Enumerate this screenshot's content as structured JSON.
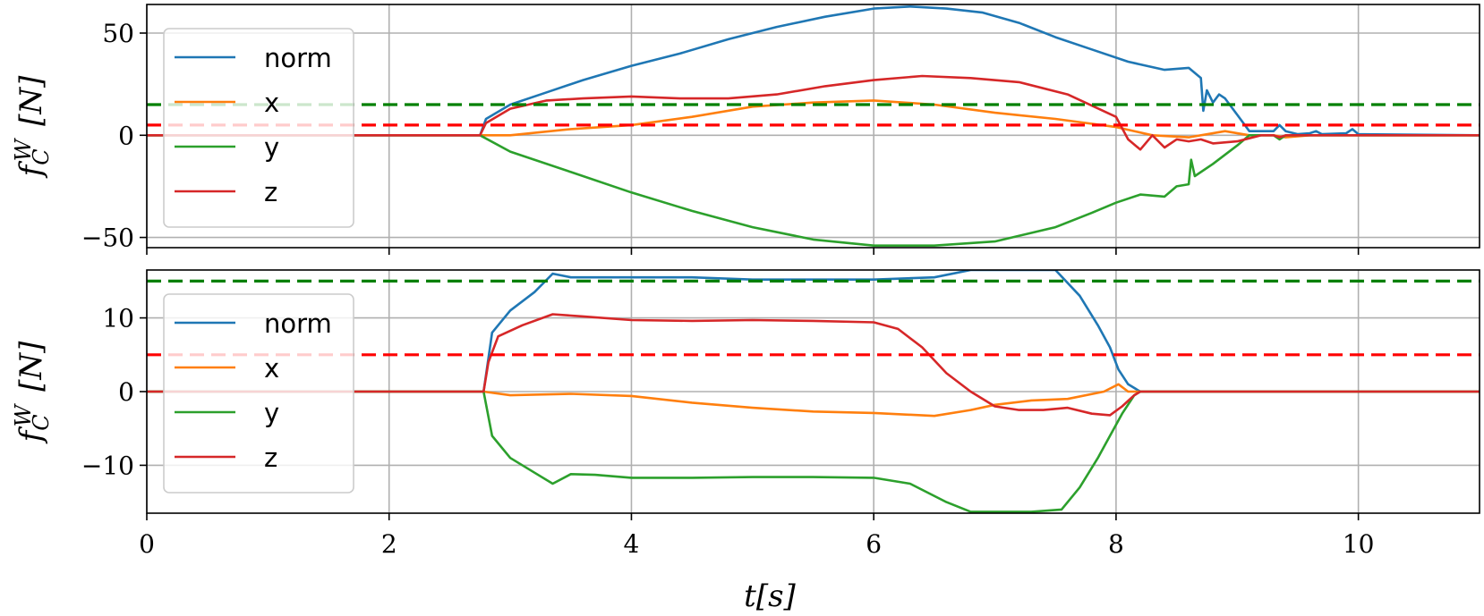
{
  "chart_data": [
    {
      "type": "line",
      "ylabel": "f_C^W [N]",
      "xlabel": "",
      "xlim": [
        0,
        11
      ],
      "ylim": [
        -55,
        64
      ],
      "xticks": [
        "0",
        "2",
        "4",
        "6",
        "8",
        "10"
      ],
      "xtick_values": [
        0,
        2,
        4,
        6,
        8,
        10
      ],
      "yticks": [
        "−50",
        "0",
        "50"
      ],
      "ytick_values": [
        -50,
        0,
        50
      ],
      "grid": true,
      "legend": "upper-left",
      "series": [
        {
          "name": "norm",
          "color": "#1f77b4",
          "x": [
            0,
            2.75,
            2.8,
            3.0,
            3.3,
            3.6,
            4.0,
            4.4,
            4.8,
            5.2,
            5.6,
            6.0,
            6.3,
            6.6,
            6.9,
            7.2,
            7.5,
            7.8,
            8.1,
            8.4,
            8.6,
            8.7,
            8.72,
            8.75,
            8.8,
            8.85,
            8.9,
            9.0,
            9.1,
            9.3,
            9.35,
            9.4,
            9.5,
            9.6,
            9.65,
            9.7,
            9.9,
            9.95,
            10.0,
            11.0
          ],
          "y": [
            0,
            0,
            8,
            15,
            21,
            27,
            34,
            40,
            47,
            53,
            58,
            62,
            63,
            62,
            60,
            55,
            48,
            42,
            36,
            32,
            33,
            28,
            12,
            22,
            16,
            20,
            18,
            10,
            2,
            2,
            5,
            2,
            0.5,
            1,
            2,
            0.5,
            1,
            3,
            0.5,
            0
          ]
        },
        {
          "name": "x",
          "color": "#ff7f0e",
          "x": [
            0,
            2.75,
            3.0,
            3.5,
            4.0,
            4.5,
            5.0,
            5.5,
            6.0,
            6.5,
            7.0,
            7.5,
            8.0,
            8.3,
            8.6,
            8.9,
            9.1,
            9.3,
            9.4,
            9.6,
            9.9,
            11.0
          ],
          "y": [
            0,
            0,
            0,
            3,
            5,
            9,
            14,
            16,
            17,
            15,
            11,
            8,
            4,
            0,
            -1,
            2,
            0,
            0,
            -1,
            0,
            0,
            0
          ]
        },
        {
          "name": "y",
          "color": "#2ca02c",
          "x": [
            0,
            2.75,
            3.0,
            3.5,
            4.0,
            4.5,
            5.0,
            5.5,
            6.0,
            6.5,
            7.0,
            7.5,
            7.8,
            8.0,
            8.2,
            8.4,
            8.5,
            8.6,
            8.62,
            8.65,
            8.8,
            9.0,
            9.1,
            9.3,
            9.35,
            9.4,
            11.0
          ],
          "y": [
            0,
            0,
            -8,
            -18,
            -28,
            -37,
            -45,
            -51,
            -54,
            -54,
            -52,
            -45,
            -38,
            -33,
            -29,
            -30,
            -25,
            -24,
            -12,
            -20,
            -14,
            -5,
            0,
            0,
            -2,
            0,
            0
          ]
        },
        {
          "name": "z",
          "color": "#d62728",
          "x": [
            0,
            2.75,
            2.8,
            3.0,
            3.3,
            3.6,
            4.0,
            4.4,
            4.8,
            5.2,
            5.6,
            6.0,
            6.4,
            6.8,
            7.2,
            7.6,
            8.0,
            8.1,
            8.2,
            8.3,
            8.4,
            8.5,
            8.6,
            8.7,
            8.8,
            9.0,
            9.2,
            9.3,
            9.35,
            9.4,
            9.6,
            9.9,
            11.0
          ],
          "y": [
            0,
            0,
            6,
            13,
            17,
            18,
            19,
            18,
            18,
            20,
            24,
            27,
            29,
            28,
            26,
            20,
            9,
            -2,
            -7,
            0,
            -6,
            -2,
            -3,
            -2,
            -4,
            -3,
            0,
            0,
            -1,
            0,
            0,
            0,
            0
          ]
        }
      ],
      "thresholds": [
        {
          "y": 15,
          "color": "#008000"
        },
        {
          "y": 5,
          "color": "#ff0000"
        }
      ]
    },
    {
      "type": "line",
      "ylabel": "f_C^W [N]",
      "xlabel": "t[s]",
      "xlim": [
        0,
        11
      ],
      "ylim": [
        -16.5,
        16.5
      ],
      "xticks": [
        "0",
        "2",
        "4",
        "6",
        "8",
        "10"
      ],
      "xtick_values": [
        0,
        2,
        4,
        6,
        8,
        10
      ],
      "yticks": [
        "−10",
        "0",
        "10"
      ],
      "ytick_values": [
        -10,
        0,
        10
      ],
      "grid": true,
      "legend": "upper-left",
      "series": [
        {
          "name": "norm",
          "color": "#1f77b4",
          "x": [
            0,
            2.78,
            2.85,
            3.0,
            3.2,
            3.35,
            3.5,
            3.7,
            4.0,
            4.5,
            5.0,
            5.5,
            6.0,
            6.5,
            6.8,
            7.0,
            7.5,
            7.7,
            7.85,
            7.95,
            8.02,
            8.1,
            8.2,
            11.0
          ],
          "y": [
            0,
            0,
            8,
            11,
            13.5,
            16,
            15.5,
            15.5,
            15.5,
            15.5,
            15.2,
            15.2,
            15.2,
            15.5,
            16.5,
            16.5,
            16.5,
            13,
            9,
            6,
            3,
            1,
            0,
            0
          ]
        },
        {
          "name": "x",
          "color": "#ff7f0e",
          "x": [
            0,
            2.78,
            3.0,
            3.5,
            4.0,
            4.5,
            5.0,
            5.5,
            6.0,
            6.5,
            6.8,
            7.0,
            7.3,
            7.6,
            7.9,
            8.02,
            8.1,
            8.2,
            11.0
          ],
          "y": [
            0,
            0,
            -0.5,
            -0.3,
            -0.6,
            -1.5,
            -2.2,
            -2.7,
            -2.9,
            -3.3,
            -2.5,
            -1.8,
            -1.2,
            -1.0,
            0,
            1,
            0,
            0,
            0
          ]
        },
        {
          "name": "y",
          "color": "#2ca02c",
          "x": [
            0,
            2.78,
            2.85,
            3.0,
            3.2,
            3.35,
            3.5,
            3.7,
            4.0,
            4.5,
            5.0,
            5.5,
            6.0,
            6.3,
            6.6,
            6.8,
            7.0,
            7.3,
            7.55,
            7.7,
            7.85,
            7.95,
            8.05,
            8.15,
            8.2,
            11.0
          ],
          "y": [
            0,
            0,
            -6,
            -9,
            -11,
            -12.5,
            -11.2,
            -11.3,
            -11.7,
            -11.7,
            -11.6,
            -11.6,
            -11.7,
            -12.5,
            -15,
            -16.3,
            -16.3,
            -16.3,
            -16,
            -13,
            -9,
            -6,
            -3,
            -0.5,
            0,
            0
          ]
        },
        {
          "name": "z",
          "color": "#d62728",
          "x": [
            0,
            2.78,
            2.82,
            2.9,
            3.1,
            3.35,
            3.6,
            4.0,
            4.5,
            5.0,
            5.5,
            6.0,
            6.2,
            6.4,
            6.6,
            6.8,
            7.0,
            7.2,
            7.4,
            7.6,
            7.8,
            7.95,
            8.05,
            8.15,
            8.2,
            11.0
          ],
          "y": [
            0,
            0,
            4,
            7.5,
            9,
            10.5,
            10.2,
            9.7,
            9.6,
            9.7,
            9.6,
            9.4,
            8.5,
            6,
            2.5,
            0,
            -2,
            -2.5,
            -2.5,
            -2.2,
            -3,
            -3.2,
            -2,
            -0.5,
            0,
            0
          ]
        }
      ],
      "thresholds": [
        {
          "y": 15,
          "color": "#008000"
        },
        {
          "y": 5,
          "color": "#ff0000"
        }
      ]
    }
  ]
}
